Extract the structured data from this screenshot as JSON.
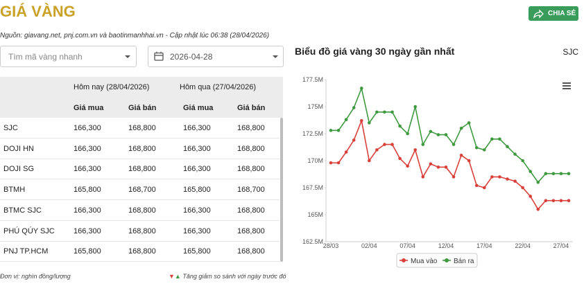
{
  "header": {
    "title": "GIÁ VÀNG",
    "share_button": "CHIA SẺ",
    "source": "Nguồn: giavang.net, pnj.com.vn và baotinmanhhai.vn - Cập nhật lúc 06:38 (28/04/2026)"
  },
  "filters": {
    "search_placeholder": "Tìm mã vàng nhanh",
    "date": "2026-04-28"
  },
  "table": {
    "group_headers": [
      "Hôm nay (28/04/2026)",
      "Hôm qua (27/04/2026)"
    ],
    "columns": [
      "Giá mua",
      "Giá bán",
      "Giá mua",
      "Giá bán"
    ],
    "rows": [
      [
        "SJC",
        "166,300",
        "168,800",
        "166,300",
        "168,800"
      ],
      [
        "DOJI HN",
        "166,300",
        "168,800",
        "166,300",
        "168,800"
      ],
      [
        "DOJI SG",
        "166,300",
        "168,800",
        "166,300",
        "168,800"
      ],
      [
        "BTMH",
        "165,800",
        "168,700",
        "165,800",
        "168,700"
      ],
      [
        "BTMC SJC",
        "166,300",
        "168,800",
        "166,300",
        "168,800"
      ],
      [
        "PHÚ QÚY SJC",
        "166,300",
        "168,800",
        "166,300",
        "168,800"
      ],
      [
        "PNJ TP.HCM",
        "165,800",
        "168,800",
        "165,800",
        "168,800"
      ]
    ]
  },
  "footer": {
    "unit_note": "Đơn vị: nghìn đồng/lượng",
    "down_arrow": "▼",
    "up_arrow": "▲",
    "change_note": "Tăng giảm so sánh với ngày trước đó"
  },
  "chart_data": {
    "type": "line",
    "title": "Biểu đồ giá vàng 30 ngày gần nhất",
    "subtitle": "SJC",
    "categories": [
      "28/03",
      null,
      null,
      null,
      null,
      "02/04",
      null,
      null,
      null,
      null,
      "07/04",
      null,
      null,
      null,
      null,
      "12/04",
      null,
      null,
      null,
      null,
      "17/04",
      null,
      null,
      null,
      null,
      "22/04",
      null,
      null,
      null,
      null,
      "27/04",
      null
    ],
    "series": [
      {
        "name": "Mua vào",
        "color": "#d9403a",
        "values": [
          169.8,
          169.8,
          170.8,
          171.9,
          173.7,
          170,
          171,
          171.5,
          171.5,
          170.2,
          169.5,
          171,
          168.5,
          169.7,
          169.4,
          169.4,
          168.5,
          170.5,
          170,
          167.7,
          167.5,
          168.5,
          168.5,
          168.3,
          168.1,
          167.5,
          166.7,
          165.5,
          166.3,
          166.3,
          166.3,
          166.3
        ]
      },
      {
        "name": "Bán ra",
        "color": "#3f9a3f",
        "values": [
          172.8,
          172.8,
          173.8,
          174.9,
          176.7,
          173.5,
          174.5,
          174.5,
          174.5,
          173.2,
          172.5,
          175,
          171.5,
          172.7,
          172.4,
          172.4,
          171.5,
          173,
          173.5,
          171.2,
          171,
          172,
          172,
          171.3,
          170.6,
          170,
          169,
          168,
          168.8,
          168.8,
          168.8,
          168.8
        ]
      }
    ],
    "ylim": [
      162.5,
      177.5
    ],
    "yticks": [
      {
        "value": 162.5,
        "label": "162.5M"
      },
      {
        "value": 165,
        "label": "165M"
      },
      {
        "value": 167.5,
        "label": "167.5M"
      },
      {
        "value": 170,
        "label": "170M"
      },
      {
        "value": 172.5,
        "label": "172.5M"
      },
      {
        "value": 175,
        "label": "175M"
      },
      {
        "value": 177.5,
        "label": "177.5M"
      }
    ],
    "grid": false,
    "legend": "bottom"
  }
}
